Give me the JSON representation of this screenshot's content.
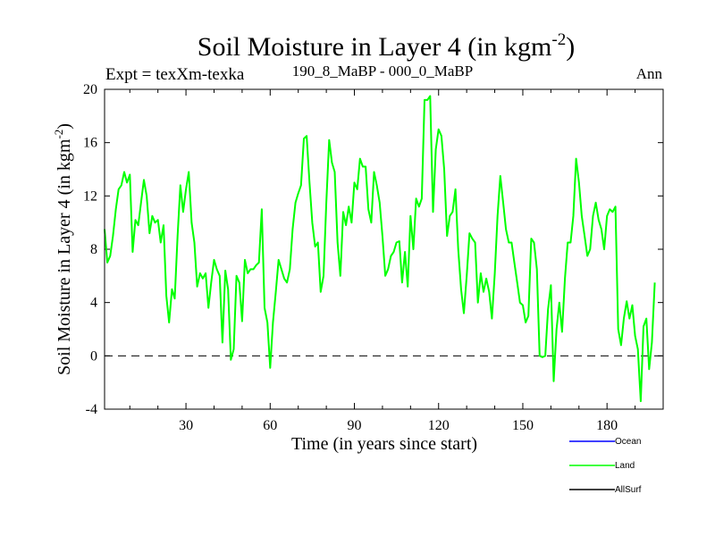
{
  "chart_data": {
    "type": "line",
    "title": "Soil Moisture in Layer 4 (in kgm",
    "title_sup": "-2",
    "title_tail": ")",
    "expt_label": "Expt = texXm-texka",
    "subtitle": "190_8_MaBP - 000_0_MaBP",
    "season": "Ann",
    "xlabel": "Time (in years since start)",
    "ylabel": "Soil Moisture in Layer 4 (in kgm",
    "ylabel_sup": "-2",
    "ylabel_tail": ")",
    "xlim": [
      1,
      200
    ],
    "ylim": [
      -4,
      20
    ],
    "xticks": [
      30,
      60,
      90,
      120,
      150,
      180
    ],
    "yticks": [
      -4,
      0,
      4,
      8,
      12,
      16,
      20
    ],
    "reference_line": 0,
    "legend": [
      {
        "name": "Ocean",
        "color": "#0000ff"
      },
      {
        "name": "Land",
        "color": "#00ff00"
      },
      {
        "name": "AllSurf",
        "color": "#000000"
      }
    ],
    "series": [
      {
        "name": "Land",
        "color": "#00ff00",
        "x_start": 1,
        "values": [
          9.5,
          7.0,
          7.5,
          9.0,
          11.0,
          12.5,
          12.8,
          13.8,
          13.0,
          13.6,
          7.8,
          10.2,
          9.8,
          11.5,
          13.2,
          12.0,
          9.2,
          10.5,
          10.0,
          10.2,
          8.5,
          9.8,
          4.5,
          2.5,
          5.0,
          4.3,
          9.0,
          12.8,
          10.8,
          12.5,
          13.8,
          10.0,
          8.5,
          5.2,
          6.2,
          5.8,
          6.2,
          3.6,
          5.5,
          7.2,
          6.5,
          6.0,
          1.0,
          6.4,
          5.0,
          -0.3,
          0.5,
          6.0,
          5.5,
          2.6,
          7.2,
          6.2,
          6.5,
          6.5,
          6.8,
          7.0,
          11.0,
          3.6,
          2.5,
          -0.9,
          2.5,
          4.8,
          7.2,
          6.5,
          5.8,
          5.5,
          6.5,
          9.5,
          11.5,
          12.2,
          12.8,
          16.3,
          16.5,
          13.0,
          10.0,
          8.2,
          8.5,
          4.8,
          6.0,
          11.5,
          16.2,
          14.5,
          13.8,
          8.5,
          6.0,
          10.8,
          9.8,
          11.2,
          10.0,
          13.0,
          12.5,
          14.8,
          14.2,
          14.2,
          11.0,
          10.0,
          13.8,
          12.8,
          11.5,
          9.0,
          6.0,
          6.5,
          7.5,
          7.8,
          8.5,
          8.6,
          5.5,
          7.8,
          5.2,
          10.5,
          8.0,
          11.8,
          11.2,
          11.8,
          19.2,
          19.2,
          19.5,
          10.8,
          15.5,
          17.0,
          16.5,
          14.0,
          9.0,
          10.5,
          10.8,
          12.5,
          8.0,
          5.0,
          3.2,
          6.0,
          9.2,
          8.8,
          8.5,
          4.0,
          6.2,
          4.8,
          5.8,
          4.8,
          2.8,
          6.2,
          10.5,
          13.5,
          11.5,
          9.5,
          8.5,
          8.5,
          7.0,
          5.5,
          4.0,
          3.8,
          2.5,
          3.0,
          8.8,
          8.5,
          6.5,
          0.0,
          -0.1,
          0.0,
          3.5,
          5.3,
          -1.9,
          2.0,
          4.0,
          1.8,
          5.8,
          8.5,
          8.5,
          10.5,
          14.8,
          13.0,
          10.5,
          9.0,
          7.5,
          8.0,
          10.5,
          11.5,
          10.2,
          9.5,
          8.0,
          10.5,
          11.0,
          10.8,
          11.2,
          2.0,
          0.8,
          2.8,
          4.1,
          2.8,
          3.8,
          1.5,
          0.5,
          -3.4,
          2.2,
          2.8,
          -1.0,
          1.0,
          5.5
        ]
      }
    ]
  }
}
